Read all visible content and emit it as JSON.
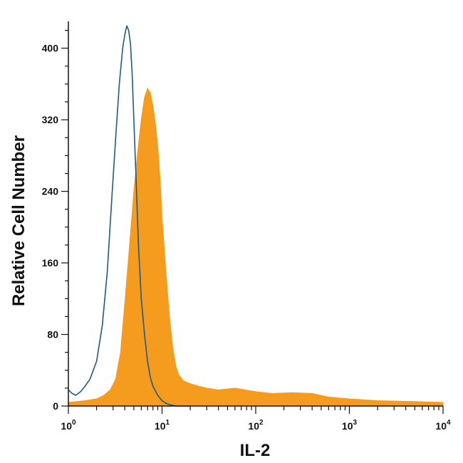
{
  "chart_data": {
    "type": "area",
    "title": "",
    "xlabel": "IL-2",
    "ylabel": "Relative Cell Number",
    "xscale": "log",
    "xlim": [
      1,
      10000
    ],
    "ylim": [
      0,
      430
    ],
    "grid": false,
    "x_ticks": [
      {
        "value": 1,
        "base": "10",
        "exp": "0"
      },
      {
        "value": 10,
        "base": "10",
        "exp": "1"
      },
      {
        "value": 100,
        "base": "10",
        "exp": "2"
      },
      {
        "value": 1000,
        "base": "10",
        "exp": "3"
      },
      {
        "value": 10000,
        "base": "10",
        "exp": "4"
      }
    ],
    "y_ticks": [
      {
        "value": 0,
        "label": "0"
      },
      {
        "value": 80,
        "label": "80"
      },
      {
        "value": 160,
        "label": "160"
      },
      {
        "value": 240,
        "label": "240"
      },
      {
        "value": 320,
        "label": "320"
      },
      {
        "value": 400,
        "label": "400"
      }
    ],
    "series": [
      {
        "style": "outline",
        "color": "#1f5a85",
        "x": [
          1.0,
          1.1,
          1.2,
          1.35,
          1.5,
          1.7,
          2.0,
          2.3,
          2.6,
          2.9,
          3.2,
          3.5,
          3.8,
          4.0,
          4.2,
          4.4,
          4.6,
          4.8,
          5.0,
          5.3,
          5.6,
          6.0,
          6.5,
          7.0,
          7.5,
          8.0,
          9.0,
          10.0,
          11.0,
          12.5,
          14.0,
          17.0,
          20.0
        ],
        "y": [
          18,
          14,
          12,
          16,
          22,
          30,
          50,
          90,
          150,
          230,
          300,
          360,
          400,
          415,
          425,
          420,
          405,
          370,
          320,
          250,
          180,
          120,
          80,
          50,
          32,
          22,
          12,
          6,
          3,
          1,
          0,
          0,
          0
        ]
      },
      {
        "style": "filled",
        "color": "#f59b1e",
        "x": [
          1.0,
          1.5,
          2.0,
          2.4,
          2.8,
          3.2,
          3.6,
          4.0,
          4.5,
          5.0,
          5.5,
          6.0,
          6.5,
          7.0,
          7.5,
          8.0,
          8.5,
          9.0,
          9.5,
          10.0,
          11.0,
          12.0,
          13.0,
          14.0,
          15.0,
          17.0,
          20.0,
          25.0,
          30.0,
          40.0,
          60.0,
          100.0,
          150.0,
          250.0,
          400.0,
          600.0,
          1000.0,
          2000.0,
          5000.0,
          10000.0
        ],
        "y": [
          4,
          6,
          8,
          12,
          18,
          30,
          60,
          115,
          180,
          240,
          285,
          320,
          345,
          355,
          350,
          335,
          315,
          290,
          255,
          210,
          150,
          100,
          65,
          45,
          35,
          28,
          25,
          22,
          20,
          18,
          20,
          16,
          14,
          15,
          14,
          10,
          8,
          6,
          5,
          4
        ]
      }
    ]
  }
}
